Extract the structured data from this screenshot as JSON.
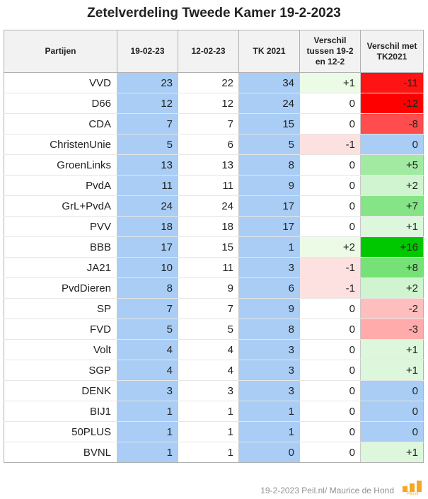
{
  "chart_data": {
    "type": "table",
    "title": "Zetelverdeling Tweede Kamer 19-2-2023",
    "columns": [
      "Partijen",
      "19-02-23",
      "12-02-23",
      "TK 2021",
      "Verschil tussen 19-2 en 12-2",
      "Verschil met TK2021"
    ],
    "rows": [
      {
        "party": "VVD",
        "d1": 23,
        "d2": 22,
        "tk": 34,
        "diff1": "+1",
        "diff2": "-11"
      },
      {
        "party": "D66",
        "d1": 12,
        "d2": 12,
        "tk": 24,
        "diff1": "0",
        "diff2": "-12"
      },
      {
        "party": "CDA",
        "d1": 7,
        "d2": 7,
        "tk": 15,
        "diff1": "0",
        "diff2": "-8"
      },
      {
        "party": "ChristenUnie",
        "d1": 5,
        "d2": 6,
        "tk": 5,
        "diff1": "-1",
        "diff2": "0"
      },
      {
        "party": "GroenLinks",
        "d1": 13,
        "d2": 13,
        "tk": 8,
        "diff1": "0",
        "diff2": "+5"
      },
      {
        "party": "PvdA",
        "d1": 11,
        "d2": 11,
        "tk": 9,
        "diff1": "0",
        "diff2": "+2"
      },
      {
        "party": "GrL+PvdA",
        "d1": 24,
        "d2": 24,
        "tk": 17,
        "diff1": "0",
        "diff2": "+7"
      },
      {
        "party": "PVV",
        "d1": 18,
        "d2": 18,
        "tk": 17,
        "diff1": "0",
        "diff2": "+1"
      },
      {
        "party": "BBB",
        "d1": 17,
        "d2": 15,
        "tk": 1,
        "diff1": "+2",
        "diff2": "+16"
      },
      {
        "party": "JA21",
        "d1": 10,
        "d2": 11,
        "tk": 3,
        "diff1": "-1",
        "diff2": "+8"
      },
      {
        "party": "PvdDieren",
        "d1": 8,
        "d2": 9,
        "tk": 6,
        "diff1": "-1",
        "diff2": "+2"
      },
      {
        "party": "SP",
        "d1": 7,
        "d2": 7,
        "tk": 9,
        "diff1": "0",
        "diff2": "-2"
      },
      {
        "party": "FVD",
        "d1": 5,
        "d2": 5,
        "tk": 8,
        "diff1": "0",
        "diff2": "-3"
      },
      {
        "party": "Volt",
        "d1": 4,
        "d2": 4,
        "tk": 3,
        "diff1": "0",
        "diff2": "+1"
      },
      {
        "party": "SGP",
        "d1": 4,
        "d2": 4,
        "tk": 3,
        "diff1": "0",
        "diff2": "+1"
      },
      {
        "party": "DENK",
        "d1": 3,
        "d2": 3,
        "tk": 3,
        "diff1": "0",
        "diff2": "0"
      },
      {
        "party": "BIJ1",
        "d1": 1,
        "d2": 1,
        "tk": 1,
        "diff1": "0",
        "diff2": "0"
      },
      {
        "party": "50PLUS",
        "d1": 1,
        "d2": 1,
        "tk": 1,
        "diff1": "0",
        "diff2": "0"
      },
      {
        "party": "BVNL",
        "d1": 1,
        "d2": 1,
        "tk": 0,
        "diff1": "0",
        "diff2": "+1"
      }
    ]
  },
  "colors": {
    "blue_column": "#a9cdf5",
    "zero_diff": "#a9cdf5",
    "diff1_positive": "#ecfbe6",
    "diff1_negative": "#fde0e0",
    "header_bg": "#f2f2f2"
  },
  "footer": {
    "credit": "19-2-2023 Peil.nl/ Maurice de Hond",
    "logo_text": "Peil.nl"
  }
}
